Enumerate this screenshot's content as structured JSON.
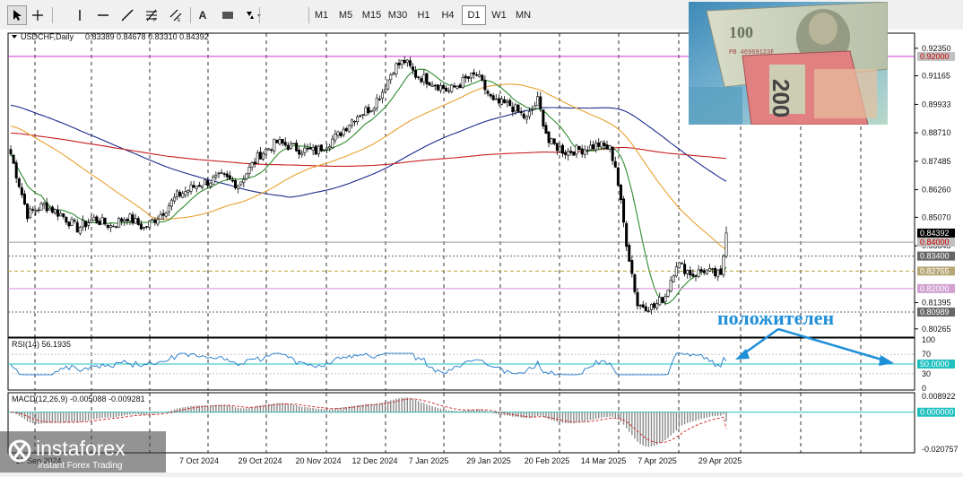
{
  "toolbar": {
    "tools": [
      {
        "icon": "cursor-icon",
        "active": true
      },
      {
        "icon": "crosshair-icon",
        "active": false
      },
      {
        "icon": "vertical-line-icon",
        "active": false
      },
      {
        "icon": "horizontal-line-icon",
        "active": false
      },
      {
        "icon": "trendline-icon",
        "active": false
      },
      {
        "icon": "fibonacci-icon",
        "active": false
      },
      {
        "icon": "channel-icon",
        "active": false
      },
      {
        "icon": "text-icon",
        "label": "A",
        "active": false
      },
      {
        "icon": "rectangle-icon",
        "active": false
      },
      {
        "icon": "shapes-icon",
        "active": false
      }
    ],
    "timeframes": [
      "M1",
      "M5",
      "M15",
      "M30",
      "H1",
      "H4",
      "D1",
      "W1",
      "MN"
    ],
    "active_timeframe": "D1"
  },
  "chart_data": {
    "type": "candlestick",
    "symbol_label": "USDCHF,Daily",
    "ohlc_label": "0.83389 0.84678 0.83310 0.84392",
    "price_axis": {
      "range": [
        0.7991,
        0.93
      ],
      "ticks": [
        "0.92350",
        "0.91165",
        "0.89933",
        "0.88710",
        "0.87485",
        "0.86260",
        "0.85070",
        "0.83845",
        "0.81395",
        "0.80265"
      ],
      "tick_values": [
        0.9235,
        0.91165,
        0.89933,
        0.8871,
        0.87485,
        0.8626,
        0.8507,
        0.83845,
        0.81395,
        0.80265
      ]
    },
    "price_labels": [
      {
        "text": "0.92000",
        "value": 0.92,
        "bg": "#c0c0c0",
        "fg": "#cc0000"
      },
      {
        "text": "0.84392",
        "value": 0.84392,
        "bg": "#000000",
        "fg": "#ffffff"
      },
      {
        "text": "0.84000",
        "value": 0.84,
        "bg": "#c0c0c0",
        "fg": "#cc0000"
      },
      {
        "text": "0.83400",
        "value": 0.834,
        "bg": "#666666",
        "fg": "#ffffff"
      },
      {
        "text": "0.82755",
        "value": 0.82755,
        "bg": "#b8a878",
        "fg": "#ffffff"
      },
      {
        "text": "0.82000",
        "value": 0.82,
        "bg": "#d0a0d0",
        "fg": "#ffffff"
      },
      {
        "text": "0.80989",
        "value": 0.80989,
        "bg": "#666666",
        "fg": "#ffffff"
      }
    ],
    "horizontal_lines": [
      {
        "value": 0.92,
        "color": "#cc33cc",
        "style": "solid"
      },
      {
        "value": 0.84,
        "color": "#999999",
        "style": "solid"
      },
      {
        "value": 0.834,
        "color": "#666666",
        "style": "dotted"
      },
      {
        "value": 0.82755,
        "color": "#b8a838",
        "style": "dashed"
      },
      {
        "value": 0.82,
        "color": "#dd88dd",
        "style": "solid"
      },
      {
        "value": 0.80989,
        "color": "#666666",
        "style": "dotted"
      }
    ],
    "x_labels": [
      "17 Sep 2024",
      "7 Oct 2024",
      "29 Oct 2024",
      "20 Nov 2024",
      "12 Dec 2024",
      "7 Jan 2025",
      "29 Jan 2025",
      "20 Feb 2025",
      "14 Mar 2025",
      "7 Apr 2025",
      "29 Apr 2025"
    ],
    "close_anchors": [
      [
        0,
        0.878
      ],
      [
        6,
        0.852
      ],
      [
        12,
        0.856
      ],
      [
        18,
        0.852
      ],
      [
        24,
        0.846
      ],
      [
        30,
        0.85
      ],
      [
        36,
        0.847
      ],
      [
        42,
        0.851
      ],
      [
        48,
        0.846
      ],
      [
        54,
        0.852
      ],
      [
        60,
        0.86
      ],
      [
        68,
        0.865
      ],
      [
        76,
        0.868
      ],
      [
        82,
        0.865
      ],
      [
        90,
        0.878
      ],
      [
        96,
        0.883
      ],
      [
        104,
        0.88
      ],
      [
        110,
        0.879
      ],
      [
        118,
        0.886
      ],
      [
        124,
        0.894
      ],
      [
        130,
        0.898
      ],
      [
        134,
        0.905
      ],
      [
        138,
        0.915
      ],
      [
        142,
        0.918
      ],
      [
        146,
        0.912
      ],
      [
        152,
        0.909
      ],
      [
        158,
        0.905
      ],
      [
        164,
        0.91
      ],
      [
        168,
        0.912
      ],
      [
        174,
        0.9
      ],
      [
        180,
        0.899
      ],
      [
        186,
        0.893
      ],
      [
        190,
        0.901
      ],
      [
        194,
        0.883
      ],
      [
        200,
        0.879
      ],
      [
        206,
        0.88
      ],
      [
        212,
        0.882
      ],
      [
        216,
        0.88
      ],
      [
        218,
        0.873
      ],
      [
        222,
        0.84
      ],
      [
        226,
        0.813
      ],
      [
        232,
        0.812
      ],
      [
        236,
        0.817
      ],
      [
        240,
        0.831
      ],
      [
        246,
        0.826
      ],
      [
        250,
        0.828
      ],
      [
        254,
        0.826
      ],
      [
        256,
        0.826
      ],
      [
        257,
        0.834
      ],
      [
        258,
        0.8439
      ]
    ],
    "moving_averages": [
      {
        "color": "#1a2a8c"
      },
      {
        "color": "#c81e1e"
      },
      {
        "color": "#e8a030"
      },
      {
        "color": "#2e8b2e"
      }
    ],
    "rsi": {
      "label": "RSI(14) 56.1935",
      "value": 56.1935,
      "levels": [
        30,
        50,
        70
      ],
      "ticks": [
        "100",
        "70",
        "50",
        "30",
        "0"
      ],
      "tick_values": [
        100,
        70,
        50,
        30,
        0
      ],
      "current_label": "50.0000"
    },
    "macd": {
      "label": "MACD(12,26,9) -0.005088 -0.009281",
      "main": -0.005088,
      "signal": -0.009281,
      "ticks": [
        "0.008922",
        "-0.020757"
      ],
      "tick_values": [
        0.008922,
        -0.020757
      ],
      "zero_label": "0.000000"
    }
  },
  "annotation": {
    "text": "положителен",
    "color": "#1e8fd8"
  },
  "logo": {
    "brand": "instaforex",
    "tagline": "Instant Forex Trading"
  }
}
